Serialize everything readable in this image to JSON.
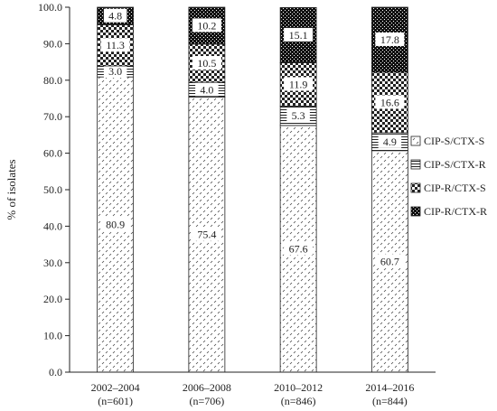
{
  "chart_data": {
    "type": "bar",
    "stacked": true,
    "categories": [
      "2002–2004",
      "2006–2008",
      "2010–2012",
      "2014–2016"
    ],
    "category_sublabels": [
      "(n=601)",
      "(n=706)",
      "(n=846)",
      "(n=844)"
    ],
    "series": [
      {
        "name": "CIP-S/CTX-S",
        "values": [
          80.9,
          75.4,
          67.6,
          60.7
        ],
        "value_labels": [
          "80.9",
          "75.4",
          "67.6",
          "60.7"
        ],
        "pattern": "dots"
      },
      {
        "name": "CIP-S/CTX-R",
        "values": [
          3.0,
          4.0,
          5.3,
          4.9
        ],
        "value_labels": [
          "3.0",
          "4.0",
          "5.3",
          "4.9"
        ],
        "pattern": "lines"
      },
      {
        "name": "CIP-R/CTX-S",
        "values": [
          11.3,
          10.5,
          11.9,
          16.6
        ],
        "value_labels": [
          "11.3",
          "10.5",
          "11.9",
          "16.6"
        ],
        "pattern": "checker"
      },
      {
        "name": "CIP-R/CTX-R",
        "values": [
          4.8,
          10.2,
          15.1,
          17.8
        ],
        "value_labels": [
          "4.8",
          "10.2",
          "15.1",
          "17.8"
        ],
        "pattern": "dark"
      }
    ],
    "title": "",
    "xlabel": "",
    "ylabel": "% of isolates",
    "ylim": [
      0,
      100
    ],
    "yticks": [
      "0.0",
      "10.0",
      "20.0",
      "30.0",
      "40.0",
      "50.0",
      "60.0",
      "70.0",
      "80.0",
      "90.0",
      "100.0"
    ],
    "grid": false,
    "legend_position": "right",
    "legend_order": [
      "CIP-S/CTX-S",
      "CIP-S/CTX-R",
      "CIP-R/CTX-S",
      "CIP-R/CTX-R"
    ]
  }
}
